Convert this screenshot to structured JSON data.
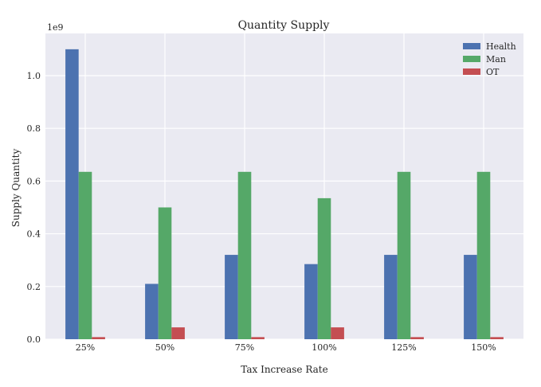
{
  "chart_data": {
    "type": "bar",
    "title": "Quantity Supply",
    "xlabel": "Tax Increase Rate",
    "ylabel": "Supply Quantity",
    "y_multiplier_label": "1e9",
    "categories": [
      "25%",
      "50%",
      "75%",
      "100%",
      "125%",
      "150%"
    ],
    "series": [
      {
        "name": "Health",
        "color": "#4c72b0",
        "values": [
          1.1,
          0.21,
          0.32,
          0.285,
          0.32,
          0.32
        ]
      },
      {
        "name": "Man",
        "color": "#55a868",
        "values": [
          0.635,
          0.5,
          0.635,
          0.535,
          0.635,
          0.635
        ]
      },
      {
        "name": "OT",
        "color": "#c44e52",
        "values": [
          0.008,
          0.045,
          0.008,
          0.045,
          0.008,
          0.008
        ]
      }
    ],
    "ylim": [
      0,
      1.16
    ],
    "yticks": [
      "0.0",
      "0.2",
      "0.4",
      "0.6",
      "0.8",
      "1.0"
    ],
    "ytick_values": [
      0,
      0.2,
      0.4,
      0.6,
      0.8,
      1.0
    ],
    "grid": true,
    "legend_position": "top-right",
    "background": "#eaeaf2"
  }
}
